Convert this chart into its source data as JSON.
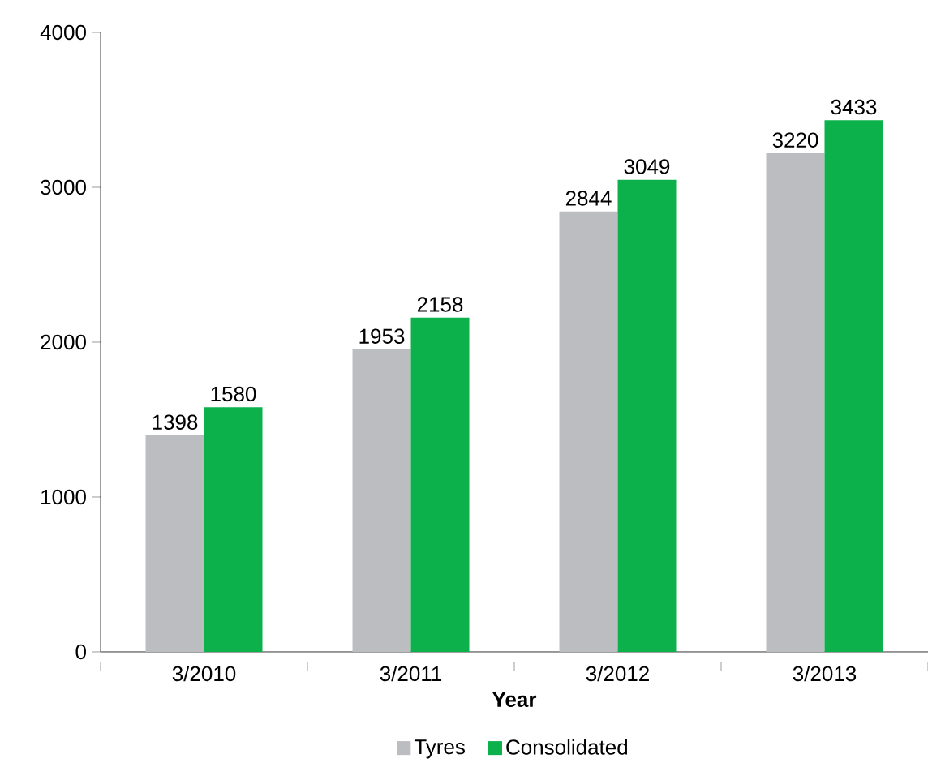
{
  "chart_data": {
    "type": "bar",
    "xlabel": "Year",
    "categories": [
      "3/2010",
      "3/2011",
      "3/2012",
      "3/2013"
    ],
    "series": [
      {
        "name": "Tyres",
        "color": "#bcbdc0",
        "values": [
          1398,
          1953,
          2844,
          3220
        ]
      },
      {
        "name": "Consolidated",
        "color": "#0db14b",
        "values": [
          1580,
          2158,
          3049,
          3433
        ]
      }
    ],
    "ylim": [
      0,
      4000
    ],
    "yticks": [
      0,
      1000,
      2000,
      3000,
      4000
    ],
    "data_labels": true,
    "legend": "bottom",
    "grid": false
  }
}
